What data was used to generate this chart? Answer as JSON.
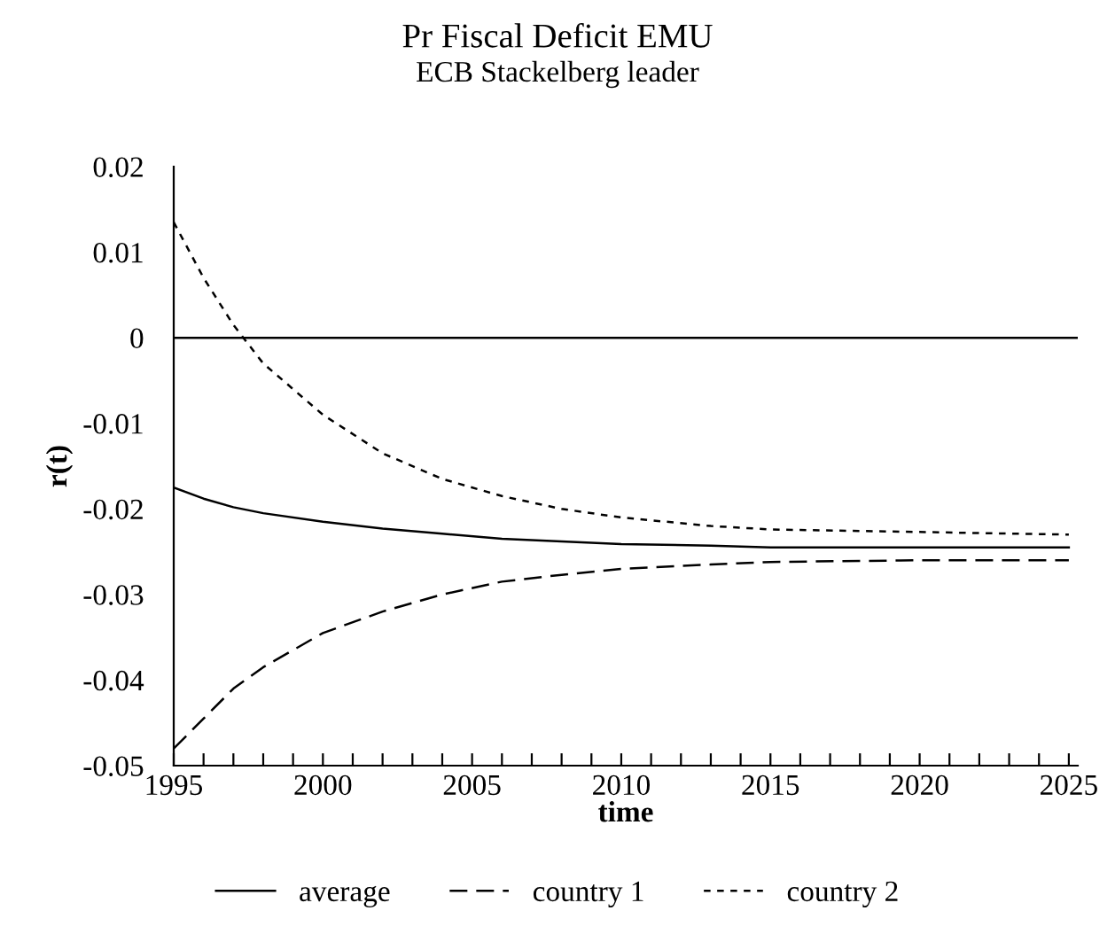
{
  "chart_data": {
    "type": "line",
    "title": "Pr Fiscal Deficit EMU",
    "subtitle": "ECB Stackelberg leader",
    "xlabel": "time",
    "ylabel": "r(t)",
    "xlim": [
      1995,
      2025.3
    ],
    "xticks": [
      1995,
      {
        "value": 1996,
        "label": null
      },
      {
        "value": 1997,
        "label": null
      },
      {
        "value": 1998,
        "label": null
      },
      {
        "value": 1999,
        "label": null
      },
      2000,
      {
        "value": 2001,
        "label": null
      },
      {
        "value": 2002,
        "label": null
      },
      {
        "value": 2003,
        "label": null
      },
      {
        "value": 2004,
        "label": null
      },
      2005,
      {
        "value": 2006,
        "label": null
      },
      {
        "value": 2007,
        "label": null
      },
      {
        "value": 2008,
        "label": null
      },
      {
        "value": 2009,
        "label": null
      },
      2010,
      {
        "value": 2011,
        "label": null
      },
      {
        "value": 2012,
        "label": null
      },
      {
        "value": 2013,
        "label": null
      },
      {
        "value": 2014,
        "label": null
      },
      2015,
      {
        "value": 2016,
        "label": null
      },
      {
        "value": 2017,
        "label": null
      },
      {
        "value": 2018,
        "label": null
      },
      {
        "value": 2019,
        "label": null
      },
      2020,
      {
        "value": 2021,
        "label": null
      },
      {
        "value": 2022,
        "label": null
      },
      {
        "value": 2023,
        "label": null
      },
      {
        "value": 2024,
        "label": null
      },
      2025
    ],
    "ylim": [
      -0.05,
      0.02
    ],
    "yticks": [
      -0.05,
      -0.04,
      -0.03,
      -0.02,
      -0.01,
      0,
      0.01,
      0.02
    ],
    "x": [
      1995,
      1996,
      1997,
      1998,
      2000,
      2002,
      2004,
      2006,
      2008,
      2010,
      2013,
      2015,
      2020,
      2025
    ],
    "series": [
      {
        "name": "average",
        "color": "#000000",
        "line_style": "solid",
        "values": [
          -0.0175,
          -0.0188,
          -0.0198,
          -0.0205,
          -0.0215,
          -0.0223,
          -0.0229,
          -0.0235,
          -0.0238,
          -0.0241,
          -0.0243,
          -0.0245,
          -0.0245,
          -0.0245
        ]
      },
      {
        "name": "country 1",
        "color": "#000000",
        "line_style": "dashed",
        "values": [
          -0.048,
          -0.0445,
          -0.041,
          -0.0385,
          -0.0345,
          -0.032,
          -0.03,
          -0.0285,
          -0.0277,
          -0.027,
          -0.0265,
          -0.0262,
          -0.026,
          -0.026
        ]
      },
      {
        "name": "country 2",
        "color": "#000000",
        "line_style": "dotted",
        "values": [
          0.0135,
          0.007,
          0.0015,
          -0.003,
          -0.009,
          -0.0135,
          -0.0165,
          -0.0185,
          -0.02,
          -0.021,
          -0.022,
          -0.0224,
          -0.0227,
          -0.023
        ]
      }
    ],
    "ref_lines": [
      {
        "axis": "y",
        "value": 0,
        "color": "#000000"
      }
    ],
    "grid": false,
    "legend": "bottom"
  }
}
